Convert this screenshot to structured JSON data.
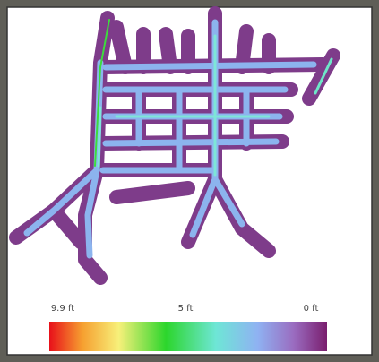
{
  "legend": {
    "labels": [
      "9.9 ft",
      "5 ft",
      "0 ft"
    ]
  }
}
